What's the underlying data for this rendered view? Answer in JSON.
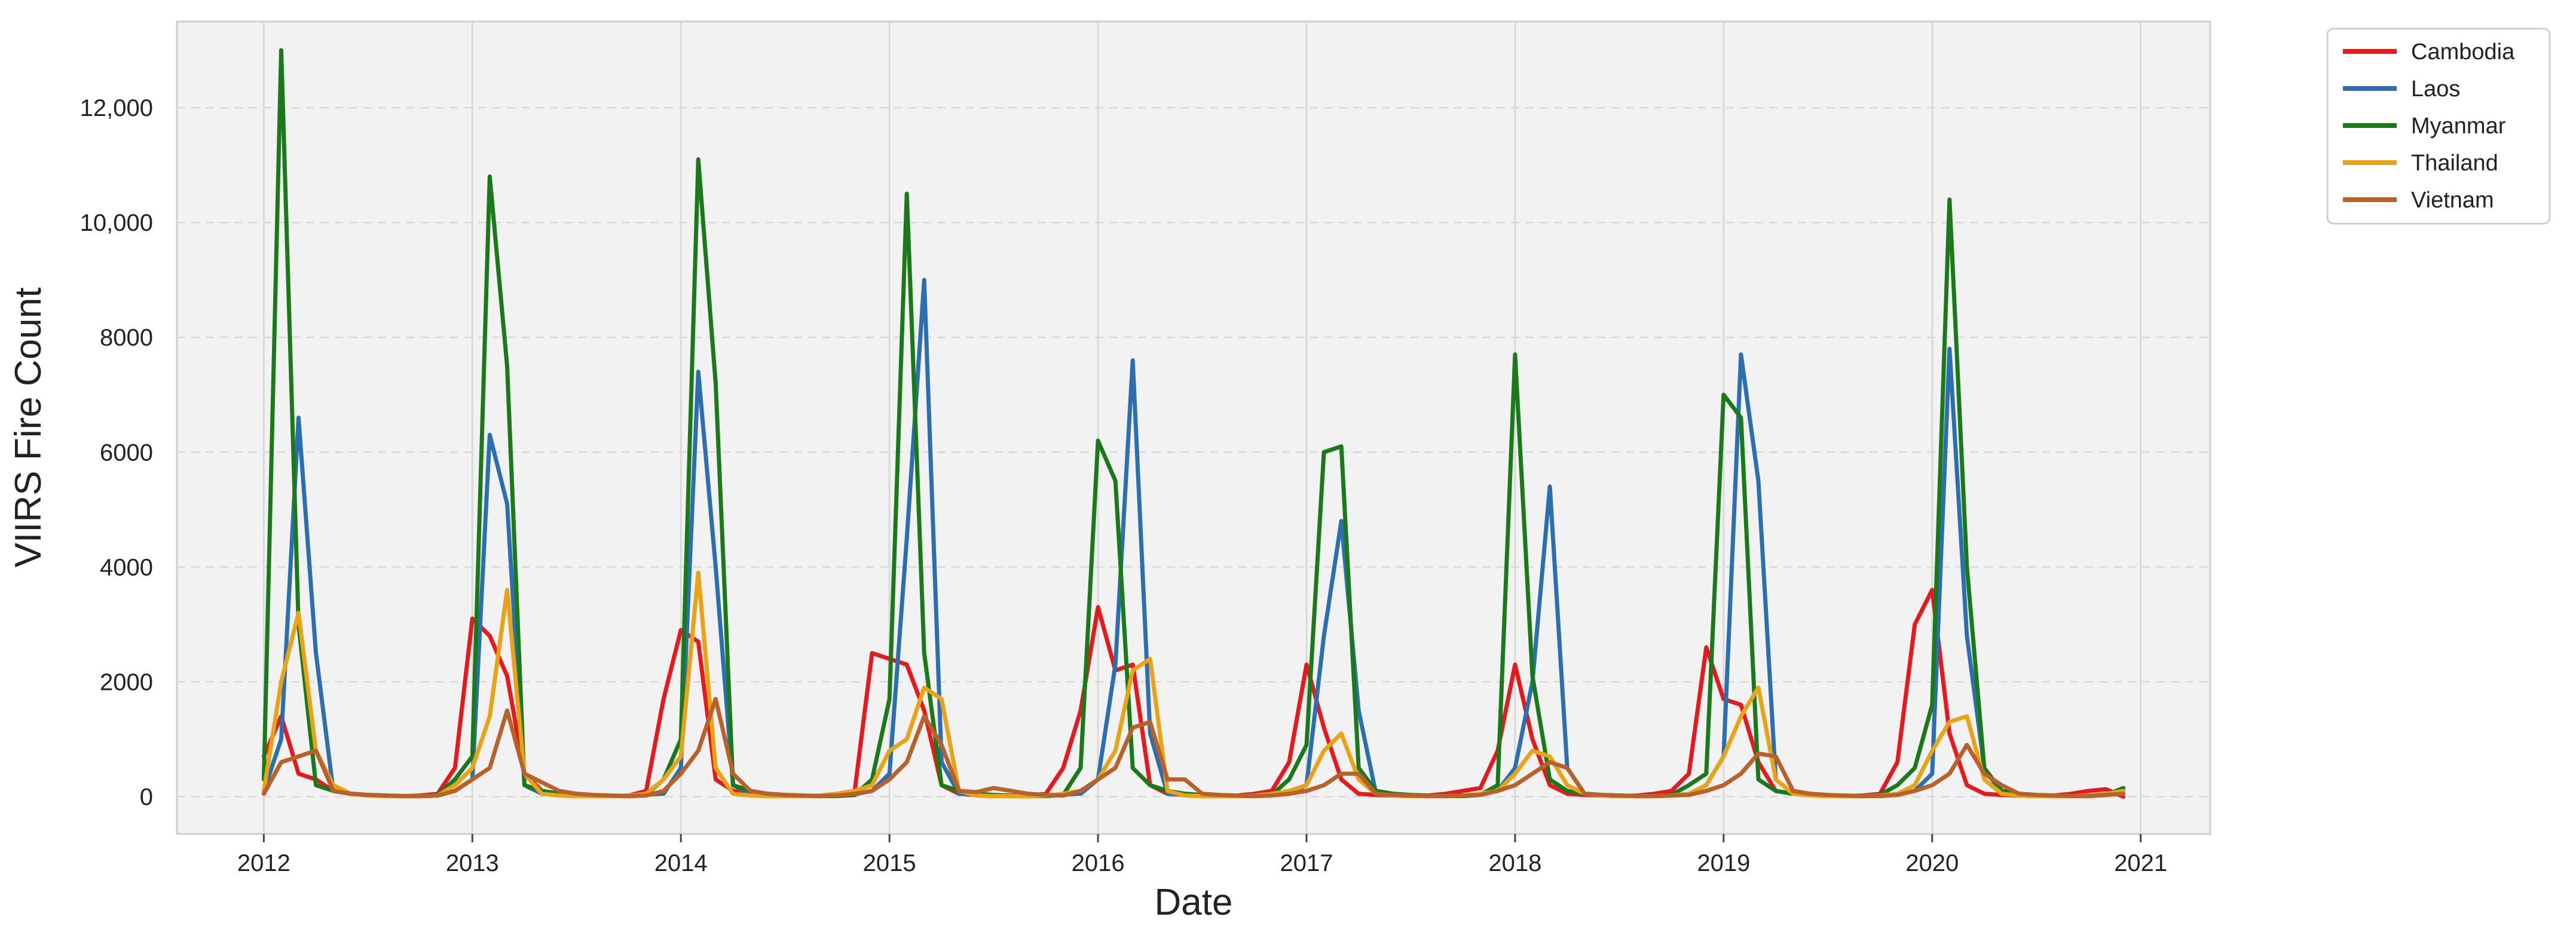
{
  "chart_data": {
    "type": "line",
    "title": "",
    "xlabel": "Date",
    "ylabel": "VIIRS Fire Count",
    "x_ticks": [
      "2012",
      "2013",
      "2014",
      "2015",
      "2016",
      "2017",
      "2018",
      "2019",
      "2020",
      "2021"
    ],
    "y_ticks": [
      {
        "value": 0,
        "label": "0"
      },
      {
        "value": 2000,
        "label": "2000"
      },
      {
        "value": 4000,
        "label": "4000"
      },
      {
        "value": 6000,
        "label": "6000"
      },
      {
        "value": 8000,
        "label": "8000"
      },
      {
        "value": 10000,
        "label": "10,000"
      },
      {
        "value": 12000,
        "label": "12,000"
      }
    ],
    "xlim": [
      "2011-08",
      "2021-05"
    ],
    "ylim": [
      -650,
      13500
    ],
    "grid": true,
    "legend_position": "outside-top-right",
    "x": [
      "2012-01",
      "2012-02",
      "2012-03",
      "2012-04",
      "2012-05",
      "2012-06",
      "2012-07",
      "2012-08",
      "2012-09",
      "2012-10",
      "2012-11",
      "2012-12",
      "2013-01",
      "2013-02",
      "2013-03",
      "2013-04",
      "2013-05",
      "2013-06",
      "2013-07",
      "2013-08",
      "2013-09",
      "2013-10",
      "2013-11",
      "2013-12",
      "2014-01",
      "2014-02",
      "2014-03",
      "2014-04",
      "2014-05",
      "2014-06",
      "2014-07",
      "2014-08",
      "2014-09",
      "2014-10",
      "2014-11",
      "2014-12",
      "2015-01",
      "2015-02",
      "2015-03",
      "2015-04",
      "2015-05",
      "2015-06",
      "2015-07",
      "2015-08",
      "2015-09",
      "2015-10",
      "2015-11",
      "2015-12",
      "2016-01",
      "2016-02",
      "2016-03",
      "2016-04",
      "2016-05",
      "2016-06",
      "2016-07",
      "2016-08",
      "2016-09",
      "2016-10",
      "2016-11",
      "2016-12",
      "2017-01",
      "2017-02",
      "2017-03",
      "2017-04",
      "2017-05",
      "2017-06",
      "2017-07",
      "2017-08",
      "2017-09",
      "2017-10",
      "2017-11",
      "2017-12",
      "2018-01",
      "2018-02",
      "2018-03",
      "2018-04",
      "2018-05",
      "2018-06",
      "2018-07",
      "2018-08",
      "2018-09",
      "2018-10",
      "2018-11",
      "2018-12",
      "2019-01",
      "2019-02",
      "2019-03",
      "2019-04",
      "2019-05",
      "2019-06",
      "2019-07",
      "2019-08",
      "2019-09",
      "2019-10",
      "2019-11",
      "2019-12",
      "2020-01",
      "2020-02",
      "2020-03",
      "2020-04",
      "2020-05",
      "2020-06",
      "2020-07",
      "2020-08",
      "2020-09",
      "2020-10",
      "2020-11",
      "2020-12"
    ],
    "series": [
      {
        "name": "Cambodia",
        "color": "#e41a1c",
        "values": [
          700,
          1400,
          400,
          300,
          100,
          50,
          30,
          20,
          10,
          20,
          50,
          500,
          3100,
          2800,
          2100,
          400,
          100,
          50,
          30,
          20,
          10,
          20,
          100,
          1700,
          2900,
          2700,
          300,
          100,
          50,
          30,
          20,
          10,
          20,
          50,
          100,
          2500,
          2400,
          2300,
          1500,
          200,
          50,
          30,
          20,
          10,
          20,
          50,
          500,
          1500,
          3300,
          2200,
          2300,
          200,
          50,
          30,
          20,
          10,
          20,
          50,
          100,
          600,
          2300,
          1200,
          300,
          50,
          30,
          20,
          10,
          20,
          50,
          100,
          150,
          800,
          2300,
          1000,
          200,
          50,
          30,
          20,
          10,
          20,
          50,
          100,
          400,
          2600,
          1700,
          1600,
          600,
          100,
          50,
          30,
          20,
          10,
          20,
          50,
          600,
          3000,
          3600,
          1100,
          200,
          50,
          30,
          20,
          10,
          20,
          50,
          100,
          130,
          0
        ]
      },
      {
        "name": "Laos",
        "color": "#2c6fb0",
        "values": [
          100,
          1000,
          6600,
          2500,
          100,
          50,
          30,
          20,
          10,
          10,
          20,
          100,
          300,
          6300,
          5100,
          200,
          50,
          30,
          20,
          10,
          10,
          20,
          40,
          50,
          500,
          7400,
          4000,
          200,
          50,
          30,
          20,
          10,
          10,
          20,
          40,
          100,
          400,
          4500,
          9000,
          600,
          50,
          30,
          20,
          10,
          10,
          20,
          40,
          50,
          300,
          2300,
          7600,
          1100,
          50,
          30,
          20,
          10,
          10,
          20,
          40,
          50,
          200,
          2800,
          4800,
          1500,
          50,
          30,
          20,
          10,
          10,
          20,
          40,
          100,
          500,
          2000,
          5400,
          500,
          50,
          30,
          20,
          10,
          10,
          20,
          40,
          200,
          700,
          7700,
          5500,
          300,
          50,
          30,
          20,
          10,
          10,
          20,
          40,
          100,
          400,
          7800,
          2800,
          500,
          50,
          30,
          20,
          10,
          10,
          20,
          40,
          100
        ]
      },
      {
        "name": "Myanmar",
        "color": "#1a7a1a",
        "values": [
          300,
          13000,
          3000,
          200,
          100,
          50,
          30,
          20,
          10,
          10,
          30,
          300,
          700,
          10800,
          7500,
          200,
          100,
          50,
          30,
          20,
          10,
          10,
          30,
          300,
          1000,
          11100,
          7200,
          200,
          100,
          50,
          30,
          20,
          10,
          10,
          30,
          300,
          1700,
          10500,
          2500,
          200,
          100,
          50,
          30,
          20,
          10,
          10,
          30,
          500,
          6200,
          5500,
          500,
          200,
          100,
          50,
          30,
          20,
          10,
          10,
          30,
          300,
          900,
          6000,
          6100,
          500,
          100,
          50,
          30,
          20,
          10,
          10,
          30,
          200,
          7700,
          2100,
          300,
          100,
          50,
          30,
          20,
          10,
          10,
          30,
          200,
          400,
          7000,
          6600,
          300,
          100,
          50,
          30,
          20,
          10,
          10,
          30,
          200,
          500,
          1600,
          10400,
          4000,
          500,
          100,
          50,
          30,
          20,
          10,
          10,
          30,
          150
        ]
      },
      {
        "name": "Thailand",
        "color": "#e8a317",
        "values": [
          100,
          2000,
          3200,
          800,
          200,
          50,
          20,
          10,
          10,
          10,
          20,
          200,
          500,
          1400,
          3600,
          400,
          50,
          20,
          10,
          10,
          10,
          20,
          50,
          300,
          700,
          3900,
          500,
          50,
          20,
          10,
          10,
          10,
          20,
          50,
          100,
          200,
          800,
          1000,
          1900,
          1700,
          100,
          20,
          10,
          10,
          10,
          20,
          50,
          100,
          300,
          800,
          2200,
          2400,
          100,
          20,
          10,
          10,
          10,
          20,
          50,
          100,
          200,
          800,
          1100,
          300,
          50,
          20,
          10,
          10,
          10,
          20,
          50,
          100,
          400,
          800,
          700,
          200,
          50,
          20,
          10,
          10,
          10,
          20,
          50,
          200,
          700,
          1400,
          1900,
          300,
          50,
          20,
          10,
          10,
          10,
          20,
          50,
          200,
          800,
          1300,
          1400,
          300,
          50,
          20,
          10,
          10,
          10,
          20,
          50,
          100
        ]
      },
      {
        "name": "Vietnam",
        "color": "#b8612a",
        "values": [
          50,
          600,
          700,
          800,
          100,
          50,
          30,
          20,
          10,
          10,
          20,
          100,
          300,
          500,
          1500,
          400,
          250,
          100,
          50,
          30,
          20,
          10,
          20,
          100,
          400,
          800,
          1700,
          400,
          100,
          50,
          30,
          20,
          10,
          20,
          50,
          100,
          300,
          600,
          1400,
          900,
          100,
          80,
          150,
          100,
          50,
          30,
          20,
          100,
          300,
          500,
          1200,
          1300,
          300,
          300,
          50,
          30,
          20,
          10,
          20,
          50,
          100,
          200,
          400,
          400,
          50,
          30,
          20,
          10,
          10,
          20,
          30,
          100,
          200,
          400,
          600,
          500,
          50,
          30,
          20,
          10,
          10,
          20,
          30,
          100,
          200,
          400,
          750,
          700,
          100,
          50,
          30,
          20,
          10,
          10,
          30,
          100,
          200,
          400,
          900,
          400,
          200,
          50,
          30,
          20,
          10,
          10,
          30,
          50
        ]
      }
    ]
  }
}
